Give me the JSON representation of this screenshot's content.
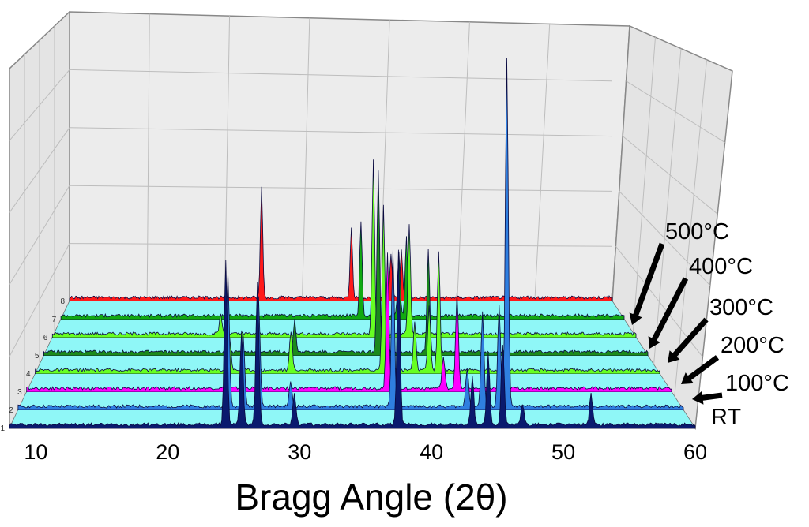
{
  "chart_data": {
    "type": "area",
    "title": "",
    "xlabel": "Bragg Angle (2θ)",
    "ylabel": "",
    "xlim": [
      8,
      60
    ],
    "x_ticks": [
      10,
      20,
      30,
      40,
      50,
      60
    ],
    "x_tick_labels": [
      "10",
      "20",
      "30",
      "40",
      "50",
      "60"
    ],
    "row_labels": [
      "1",
      "2",
      "3",
      "4",
      "5",
      "6",
      "7",
      "8"
    ],
    "grid": true,
    "style": "3d-waterfall",
    "annotations": [
      "500°C",
      "400°C",
      "300°C",
      "200°C",
      "100°C",
      "RT"
    ],
    "series": [
      {
        "row": 1,
        "color": "#0a1a6e",
        "peaks": [
          [
            24.4,
            210
          ],
          [
            25.6,
            120
          ],
          [
            26.8,
            180
          ],
          [
            29.6,
            40
          ],
          [
            37.5,
            220
          ],
          [
            43.1,
            60
          ],
          [
            44.3,
            90
          ],
          [
            45.4,
            100
          ],
          [
            46.9,
            25
          ],
          [
            52.1,
            40
          ]
        ]
      },
      {
        "row": 2,
        "color": "#2f7fe0",
        "peaks": [
          [
            24.4,
            170
          ],
          [
            25.6,
            90
          ],
          [
            26.8,
            140
          ],
          [
            29.3,
            30
          ],
          [
            37.3,
            200
          ],
          [
            43.1,
            50
          ],
          [
            44.3,
            120
          ],
          [
            45.6,
            130
          ],
          [
            46.2,
            440
          ]
        ]
      },
      {
        "row": 3,
        "color": "#ff00ff",
        "peaks": [
          [
            37.1,
            170
          ],
          [
            41.6,
            40
          ],
          [
            42.7,
            120
          ]
        ]
      },
      {
        "row": 4,
        "color": "#66ff22",
        "peaks": [
          [
            24.2,
            40
          ],
          [
            29.3,
            50
          ],
          [
            37.0,
            210
          ],
          [
            39.6,
            60
          ],
          [
            40.8,
            80
          ],
          [
            41.6,
            150
          ]
        ]
      },
      {
        "row": 5,
        "color": "#1b8a1b",
        "peaks": [
          [
            29.6,
            40
          ],
          [
            36.8,
            230
          ],
          [
            41.1,
            130
          ]
        ]
      },
      {
        "row": 6,
        "color": "#66ff22",
        "peaks": [
          [
            23.0,
            25
          ],
          [
            36.6,
            220
          ],
          [
            39.8,
            140
          ]
        ]
      },
      {
        "row": 7,
        "color": "#11aa11",
        "peaks": [
          [
            35.7,
            120
          ],
          [
            39.2,
            80
          ],
          [
            39.9,
            100
          ]
        ]
      },
      {
        "row": 8,
        "color": "#ff1a1a",
        "peaks": [
          [
            26.4,
            140
          ],
          [
            35.0,
            90
          ],
          [
            38.8,
            55
          ],
          [
            39.8,
            60
          ]
        ]
      }
    ]
  }
}
